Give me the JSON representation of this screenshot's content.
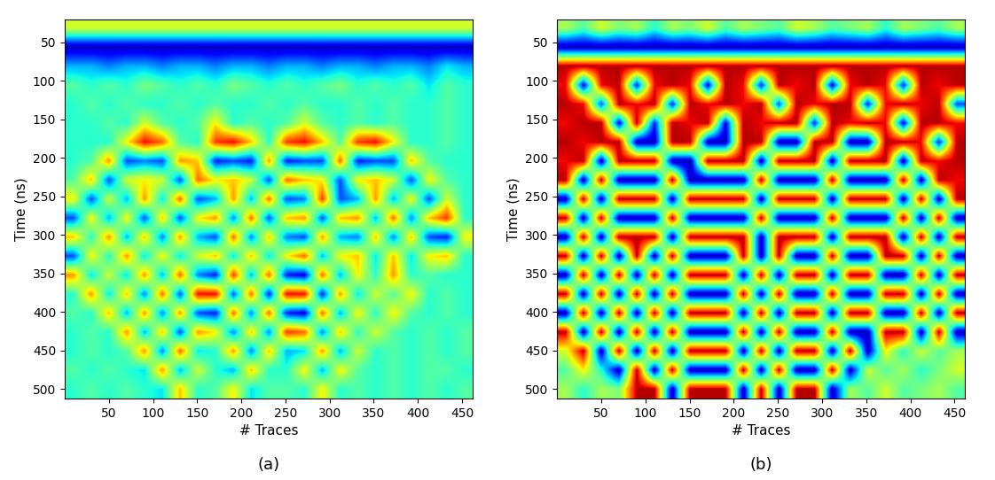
{
  "chart_data": [
    {
      "type": "heatmap",
      "caption": "(a)",
      "xlabel": "# Traces",
      "ylabel": "Time (ns)",
      "xlim": [
        0,
        462
      ],
      "ylim": [
        512,
        20
      ],
      "xticks": [
        50,
        100,
        150,
        200,
        250,
        300,
        350,
        400,
        450
      ],
      "yticks": [
        50,
        100,
        150,
        200,
        250,
        300,
        350,
        400,
        450,
        500
      ],
      "value_range": [
        -10,
        10
      ],
      "cells": [
        [
          2,
          2,
          2,
          2,
          2,
          2,
          2,
          2,
          2,
          2,
          2,
          2,
          2,
          2,
          2,
          2,
          2,
          2,
          2,
          2,
          2,
          2,
          2
        ],
        [
          -9,
          -9,
          -9,
          -9,
          -9,
          -9,
          -9,
          -9,
          -9,
          -9,
          -9,
          -9,
          -9,
          -9,
          -9,
          -9,
          -9,
          -9,
          -9,
          -9,
          -9,
          -9,
          -9
        ],
        [
          -4,
          -4,
          -5,
          -4,
          -4,
          -5,
          -4,
          -4,
          -5,
          -4,
          -4,
          -5,
          -4,
          -4,
          -5,
          -4,
          -4,
          -5,
          -4,
          -4,
          -5,
          -3,
          -4
        ],
        [
          -1,
          -2,
          -1,
          -2,
          0,
          -1,
          -2,
          -1,
          -2,
          0,
          -1,
          -2,
          -1,
          -2,
          -1,
          0,
          -2,
          -1,
          -2,
          -1,
          -3,
          -1,
          -2
        ],
        [
          -2,
          -1,
          -2,
          -1,
          -2,
          -2,
          -1,
          -2,
          -1,
          -2,
          -2,
          -1,
          -2,
          -1,
          -2,
          -2,
          -1,
          -2,
          -1,
          -2,
          -2,
          -1,
          -2
        ],
        [
          -2,
          -2,
          -1,
          -2,
          2,
          -1,
          -2,
          -1,
          3,
          -2,
          -1,
          -2,
          -1,
          2,
          -1,
          -2,
          -1,
          -2,
          -1,
          -2,
          -2,
          -1,
          -2
        ],
        [
          -2,
          -2,
          -2,
          3,
          8,
          6,
          -1,
          -2,
          7,
          8,
          4,
          -2,
          7,
          8,
          4,
          -1,
          7,
          8,
          3,
          -2,
          -2,
          -1,
          -2
        ],
        [
          -2,
          -1,
          5,
          -6,
          -5,
          -6,
          5,
          4,
          -7,
          -6,
          -7,
          5,
          -7,
          -6,
          -6,
          6,
          -7,
          -6,
          -6,
          4,
          -1,
          -2,
          -2
        ],
        [
          -1,
          4,
          -6,
          2,
          3,
          2,
          -6,
          6,
          3,
          4,
          2,
          -6,
          6,
          4,
          3,
          -6,
          3,
          4,
          2,
          -6,
          3,
          -1,
          -2
        ],
        [
          3,
          -6,
          2,
          -4,
          5,
          -3,
          6,
          -6,
          -4,
          5,
          -4,
          6,
          -6,
          -5,
          7,
          -6,
          -4,
          5,
          -4,
          3,
          -6,
          2,
          -2
        ],
        [
          -6,
          3,
          -4,
          3,
          -6,
          4,
          -6,
          3,
          5,
          -5,
          6,
          -6,
          4,
          5,
          -6,
          4,
          5,
          -4,
          6,
          -5,
          4,
          7,
          -2
        ],
        [
          4,
          -2,
          5,
          -4,
          4,
          -5,
          5,
          -4,
          -6,
          6,
          -5,
          4,
          -5,
          -6,
          5,
          -4,
          -5,
          4,
          -5,
          4,
          -6,
          -7,
          3
        ],
        [
          -6,
          3,
          -2,
          5,
          -3,
          3,
          -3,
          2,
          4,
          -3,
          4,
          -3,
          3,
          6,
          -4,
          3,
          4,
          -3,
          4,
          -3,
          3,
          4,
          -2
        ],
        [
          5,
          -3,
          2,
          -3,
          5,
          -4,
          6,
          -5,
          -7,
          7,
          -4,
          6,
          -7,
          -8,
          6,
          -4,
          3,
          -2,
          5,
          -2,
          -1,
          -2,
          -2
        ],
        [
          -2,
          5,
          -3,
          4,
          -5,
          6,
          -6,
          8,
          8,
          -6,
          6,
          -7,
          8,
          8,
          -7,
          5,
          -3,
          2,
          -1,
          3,
          -2,
          -1,
          -2
        ],
        [
          -1,
          -2,
          4,
          -4,
          5,
          -5,
          5,
          -6,
          -7,
          6,
          -5,
          6,
          -7,
          -8,
          6,
          -4,
          3,
          -2,
          3,
          -1,
          -2,
          -1,
          -2
        ],
        [
          -2,
          -1,
          -2,
          5,
          -4,
          4,
          -6,
          5,
          3,
          -5,
          4,
          -5,
          7,
          6,
          -5,
          4,
          -2,
          2,
          -1,
          -2,
          -1,
          -2,
          -1
        ],
        [
          -2,
          -1,
          -2,
          -1,
          5,
          -5,
          6,
          -3,
          -2,
          5,
          -5,
          4,
          -4,
          -3,
          5,
          -4,
          2,
          -2,
          -1,
          -2,
          -1,
          -2,
          -1
        ],
        [
          -1,
          -2,
          -1,
          -2,
          -3,
          5,
          -4,
          2,
          -2,
          -4,
          4,
          -2,
          -2,
          3,
          -4,
          3,
          -1,
          -2,
          -1,
          -2,
          -1,
          -1,
          -2
        ],
        [
          -2,
          -1,
          -2,
          -1,
          -2,
          -3,
          4,
          -2,
          -1,
          3,
          -3,
          -1,
          -1,
          -2,
          3,
          -2,
          -1,
          -2,
          -1,
          -2,
          -1,
          -2,
          -1
        ]
      ]
    },
    {
      "type": "heatmap",
      "caption": "(b)",
      "xlabel": "# Traces",
      "ylabel": "Time (ns)",
      "xlim": [
        0,
        462
      ],
      "ylim": [
        512,
        20
      ],
      "xticks": [
        50,
        100,
        150,
        200,
        250,
        300,
        350,
        400,
        450
      ],
      "yticks": [
        50,
        100,
        150,
        200,
        250,
        300,
        350,
        400,
        450,
        500
      ],
      "value_range": [
        -10,
        10
      ],
      "cells": [
        [
          1,
          -1,
          2,
          0,
          1,
          -2,
          1,
          0,
          2,
          -1,
          1,
          0,
          -1,
          2,
          1,
          -1,
          0,
          1,
          -2,
          1,
          0,
          -1,
          1
        ],
        [
          -9,
          -9,
          -9,
          -9,
          -9,
          -9,
          -9,
          -9,
          -9,
          -9,
          -9,
          -9,
          -9,
          -9,
          -9,
          -9,
          -9,
          -9,
          -9,
          -9,
          -9,
          -9,
          -9
        ],
        [
          9,
          9,
          9,
          9,
          9,
          9,
          9,
          9,
          9,
          9,
          9,
          9,
          9,
          9,
          9,
          9,
          9,
          9,
          9,
          9,
          9,
          9,
          9
        ],
        [
          8,
          -8,
          8,
          9,
          -7,
          8,
          9,
          8,
          -8,
          9,
          8,
          -7,
          9,
          8,
          9,
          -8,
          8,
          9,
          8,
          -7,
          9,
          8,
          9
        ],
        [
          9,
          8,
          -6,
          9,
          8,
          9,
          -7,
          9,
          8,
          9,
          8,
          9,
          -6,
          9,
          8,
          9,
          9,
          -7,
          8,
          9,
          8,
          9,
          -6
        ],
        [
          8,
          9,
          9,
          -8,
          9,
          -7,
          9,
          8,
          9,
          -8,
          9,
          8,
          9,
          9,
          -7,
          9,
          8,
          9,
          8,
          -8,
          9,
          9,
          8
        ],
        [
          9,
          8,
          9,
          9,
          -9,
          -9,
          9,
          9,
          -9,
          -9,
          9,
          9,
          -9,
          -9,
          9,
          9,
          -9,
          -9,
          9,
          9,
          8,
          -7,
          9
        ],
        [
          8,
          9,
          -9,
          9,
          9,
          9,
          -9,
          -9,
          9,
          9,
          9,
          -9,
          9,
          9,
          9,
          -9,
          9,
          9,
          9,
          -9,
          9,
          8,
          9
        ],
        [
          9,
          -9,
          9,
          -9,
          -9,
          -9,
          9,
          -9,
          -9,
          -9,
          -9,
          9,
          -9,
          -9,
          -9,
          9,
          -9,
          -9,
          -9,
          9,
          -9,
          9,
          8
        ],
        [
          -9,
          9,
          -9,
          9,
          9,
          9,
          -9,
          9,
          9,
          9,
          9,
          -9,
          9,
          9,
          9,
          -9,
          9,
          9,
          9,
          -9,
          9,
          -9,
          9
        ],
        [
          9,
          -9,
          9,
          -9,
          -9,
          -9,
          9,
          -9,
          -9,
          -9,
          -9,
          9,
          -9,
          -9,
          -9,
          9,
          -9,
          -9,
          -9,
          9,
          -9,
          9,
          -9
        ],
        [
          -9,
          9,
          -9,
          9,
          9,
          9,
          -9,
          9,
          9,
          9,
          9,
          -9,
          9,
          9,
          9,
          -9,
          9,
          9,
          9,
          -9,
          9,
          -9,
          9
        ],
        [
          9,
          -9,
          9,
          -9,
          9,
          -9,
          9,
          -9,
          -9,
          -9,
          9,
          -9,
          9,
          -9,
          -9,
          9,
          -9,
          -9,
          9,
          9,
          -9,
          9,
          -9
        ],
        [
          -9,
          9,
          -9,
          9,
          -9,
          9,
          -9,
          9,
          9,
          9,
          -9,
          9,
          -9,
          9,
          9,
          -9,
          9,
          9,
          -9,
          -9,
          9,
          -9,
          9
        ],
        [
          9,
          -9,
          9,
          -9,
          9,
          -9,
          9,
          -9,
          -9,
          -9,
          9,
          -9,
          9,
          -9,
          -9,
          9,
          -9,
          -9,
          9,
          9,
          -9,
          9,
          -9
        ],
        [
          -9,
          9,
          -9,
          9,
          -9,
          9,
          -9,
          9,
          9,
          9,
          -9,
          9,
          -9,
          9,
          9,
          -9,
          9,
          9,
          -9,
          -9,
          9,
          -9,
          9
        ],
        [
          9,
          -9,
          9,
          -9,
          9,
          -9,
          9,
          -9,
          -9,
          -9,
          9,
          -9,
          9,
          -9,
          -9,
          9,
          -9,
          -9,
          9,
          9,
          -9,
          9,
          -9
        ],
        [
          2,
          9,
          -9,
          9,
          -9,
          9,
          -9,
          9,
          9,
          9,
          -9,
          9,
          -9,
          9,
          9,
          -9,
          9,
          -9,
          3,
          -2,
          2,
          -1,
          1
        ],
        [
          -1,
          3,
          -2,
          -9,
          9,
          -9,
          9,
          -9,
          -9,
          -9,
          9,
          -9,
          9,
          -9,
          -9,
          9,
          -9,
          2,
          -1,
          1,
          -2,
          0,
          2
        ],
        [
          1,
          -2,
          1,
          0,
          9,
          9,
          -9,
          9,
          9,
          9,
          -9,
          9,
          -9,
          9,
          9,
          -9,
          1,
          -1,
          2,
          -1,
          0,
          1,
          -1
        ]
      ]
    }
  ]
}
